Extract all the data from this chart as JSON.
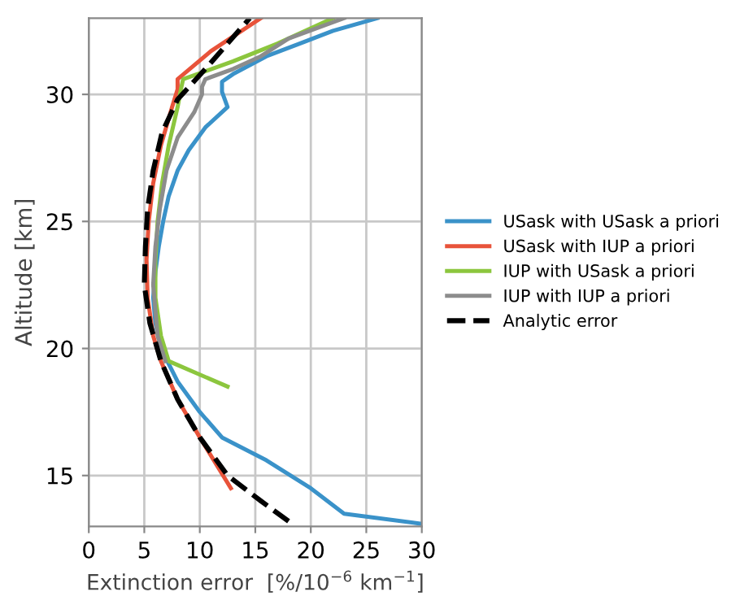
{
  "chart_data": {
    "type": "line",
    "xlabel": "Extinction error  [%/10$^{−6}$ km$^{−1}$]",
    "ylabel": "Altitude [km]",
    "xlim": [
      0,
      30
    ],
    "xticks": [
      0,
      5,
      10,
      15,
      20,
      25,
      30
    ],
    "ylim": [
      13,
      33
    ],
    "yticks": [
      15,
      20,
      25,
      30
    ],
    "grid": true,
    "legend": "right",
    "marker": "none",
    "series": [
      {
        "name": "USask with USask a priori",
        "color": "#3a92c9",
        "line_style": "solid",
        "x": [
          30,
          23,
          20,
          16,
          12,
          10,
          8,
          6.5,
          6,
          5.8,
          6,
          6.3,
          6.7,
          7.2,
          8,
          9,
          10.5,
          12.5,
          12,
          12,
          13,
          16,
          19,
          22,
          26
        ],
        "values": [
          13.1,
          13.5,
          14.5,
          15.6,
          16.5,
          17.5,
          18.7,
          20,
          21,
          22,
          23,
          24,
          25,
          26,
          27,
          27.8,
          28.7,
          29.5,
          30.1,
          30.5,
          30.8,
          31.5,
          32,
          32.5,
          33
        ]
      },
      {
        "name": "USask with IUP a priori",
        "color": "#e8533a",
        "line_style": "solid",
        "x": [
          12.8,
          10,
          8,
          6.5,
          5.8,
          5.3,
          5.2,
          5.4,
          5.8,
          6.5,
          7.5,
          8,
          8,
          11,
          15.5
        ],
        "values": [
          14.5,
          16.5,
          18,
          19.5,
          20.5,
          22,
          23.5,
          25,
          26.5,
          28,
          29.5,
          30.2,
          30.6,
          31.7,
          33
        ]
      },
      {
        "name": "IUP with USask a priori",
        "color": "#8cc63e",
        "line_style": "solid",
        "x": [
          12.5,
          7.2,
          6.5,
          6,
          6,
          6.2,
          6.6,
          7.2,
          8,
          8.3,
          8.5,
          13,
          17,
          22
        ],
        "values": [
          18.5,
          19.5,
          20.5,
          22,
          23.5,
          25,
          26.5,
          28,
          29.5,
          30.2,
          30.6,
          31.3,
          32,
          33
        ]
      },
      {
        "name": "IUP with IUP a priori",
        "color": "#8c8c8c",
        "line_style": "solid",
        "x": [
          6.9,
          6.2,
          5.8,
          6,
          6.4,
          7,
          8,
          9.5,
          10.2,
          10.2,
          10.5,
          13,
          15.5,
          18,
          23
        ],
        "values": [
          19.5,
          20.5,
          22.5,
          24,
          25.5,
          27,
          28.3,
          29.3,
          30,
          30.3,
          30.6,
          31,
          31.5,
          32.2,
          33
        ]
      },
      {
        "name": "Analytic error",
        "color": "#000000",
        "line_style": "dashed",
        "x": [
          18,
          15.5,
          12.5,
          10,
          8,
          6.5,
          5.5,
          5,
          5.1,
          5.3,
          5.8,
          6.6,
          8,
          10.5,
          12.5,
          14.5
        ],
        "values": [
          13.2,
          14,
          15,
          16.5,
          18,
          19.5,
          21,
          22.5,
          24,
          25.5,
          27,
          28.5,
          29.8,
          31,
          32,
          33
        ]
      }
    ]
  }
}
